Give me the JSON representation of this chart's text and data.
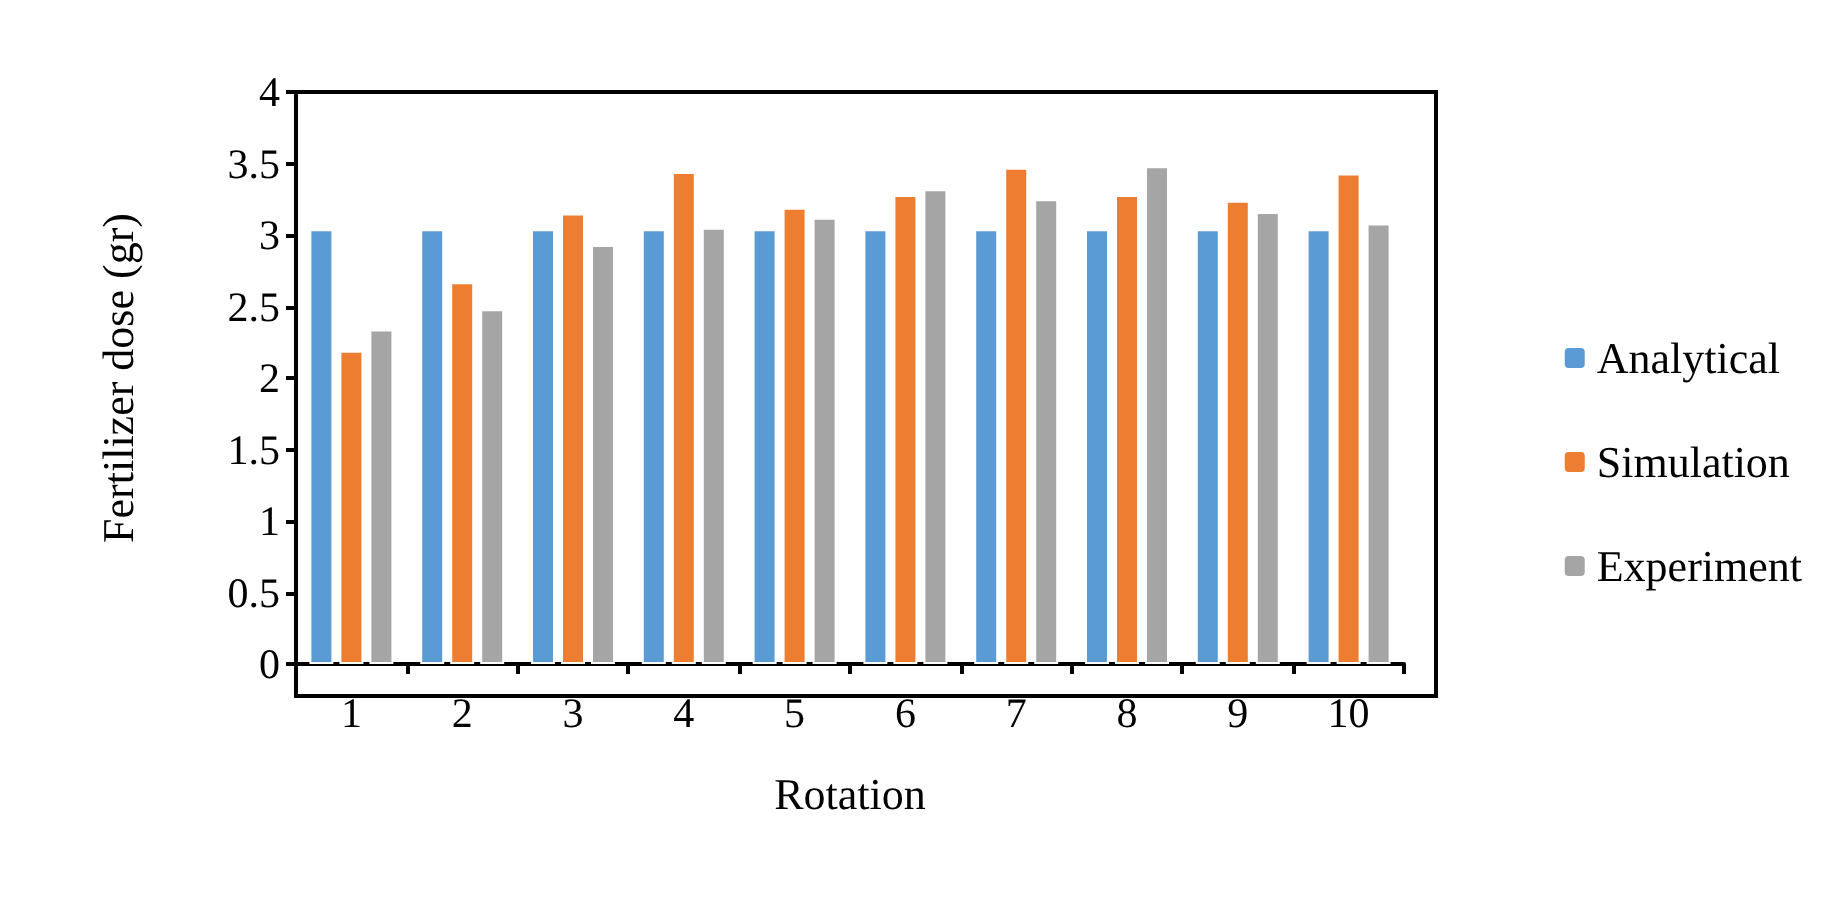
{
  "chart_data": {
    "type": "bar",
    "xlabel": "Rotation",
    "ylabel": "Fertilizer dose (gr)",
    "categories": [
      "1",
      "2",
      "3",
      "4",
      "5",
      "6",
      "7",
      "8",
      "9",
      "10"
    ],
    "series": [
      {
        "name": "Analytical",
        "color": "#5b9bd5",
        "values": [
          3.04,
          3.04,
          3.04,
          3.04,
          3.04,
          3.04,
          3.04,
          3.04,
          3.04,
          3.04
        ]
      },
      {
        "name": "Simulation",
        "color": "#ed7d31",
        "values": [
          2.19,
          2.67,
          3.15,
          3.44,
          3.19,
          3.28,
          3.47,
          3.28,
          3.24,
          3.43
        ]
      },
      {
        "name": "Experiment",
        "color": "#a5a5a5",
        "values": [
          2.34,
          2.48,
          2.93,
          3.05,
          3.12,
          3.32,
          3.25,
          3.48,
          3.16,
          3.08
        ]
      }
    ],
    "ylim": [
      0,
      4
    ],
    "yticks": [
      0,
      0.5,
      1,
      1.5,
      2,
      2.5,
      3,
      3.5,
      4
    ],
    "grid": false,
    "legend": "right"
  }
}
